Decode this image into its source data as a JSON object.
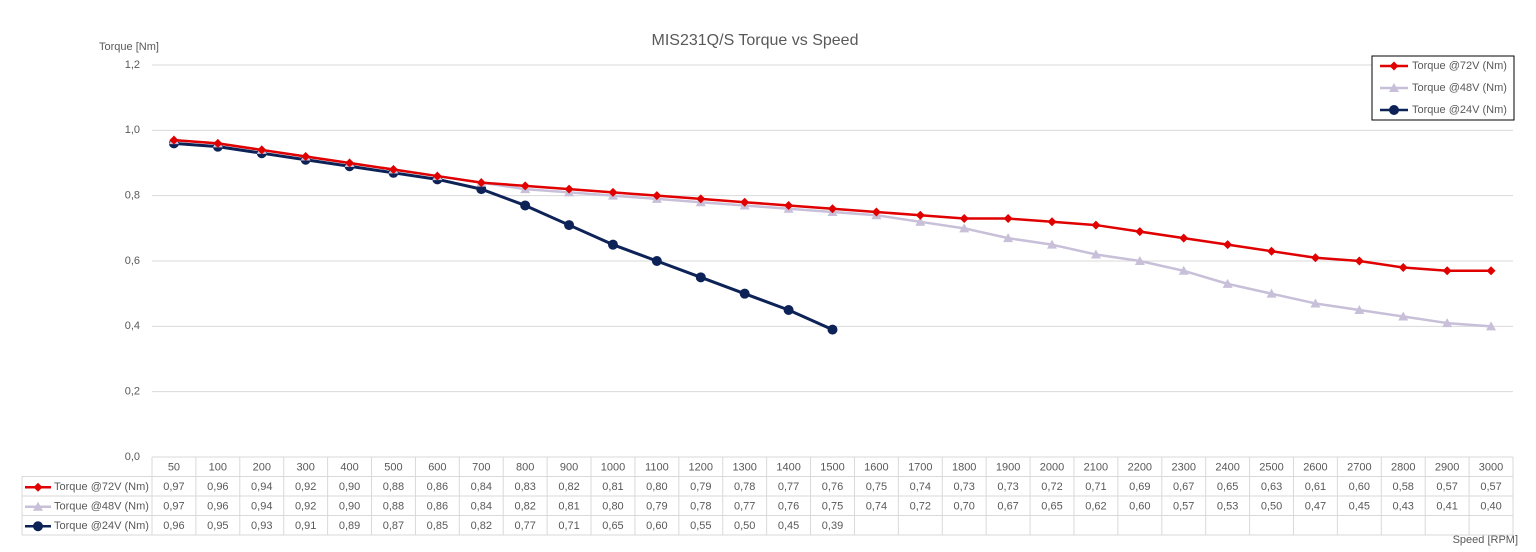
{
  "chart_data": {
    "type": "line",
    "title": "MIS231Q/S Torque vs Speed",
    "y_label": "Torque [Nm]",
    "x_label": "Speed [RPM]",
    "categories": [
      "50",
      "100",
      "200",
      "300",
      "400",
      "500",
      "600",
      "700",
      "800",
      "900",
      "1000",
      "1100",
      "1200",
      "1300",
      "1400",
      "1500",
      "1600",
      "1700",
      "1800",
      "1900",
      "2000",
      "2100",
      "2200",
      "2300",
      "2400",
      "2500",
      "2600",
      "2700",
      "2800",
      "2900",
      "3000"
    ],
    "ylim": [
      0,
      1.2
    ],
    "yticks": [
      {
        "value": 0,
        "label": "0,0"
      },
      {
        "value": 0.2,
        "label": "0,2"
      },
      {
        "value": 0.4,
        "label": "0,4"
      },
      {
        "value": 0.6,
        "label": "0,6"
      },
      {
        "value": 0.8,
        "label": "0,8"
      },
      {
        "value": 1.0,
        "label": "1,0"
      },
      {
        "value": 1.2,
        "label": "1,2"
      }
    ],
    "grid": true,
    "legend": "top-right",
    "series": [
      {
        "name": "Torque @72V (Nm)",
        "color": "#e00000",
        "marker": "diamond",
        "values": [
          0.97,
          0.96,
          0.94,
          0.92,
          0.9,
          0.88,
          0.86,
          0.84,
          0.83,
          0.82,
          0.81,
          0.8,
          0.79,
          0.78,
          0.77,
          0.76,
          0.75,
          0.74,
          0.73,
          0.73,
          0.72,
          0.71,
          0.69,
          0.67,
          0.65,
          0.63,
          0.61,
          0.6,
          0.58,
          0.57,
          0.57
        ],
        "value_labels": [
          "0,97",
          "0,96",
          "0,94",
          "0,92",
          "0,90",
          "0,88",
          "0,86",
          "0,84",
          "0,83",
          "0,82",
          "0,81",
          "0,80",
          "0,79",
          "0,78",
          "0,77",
          "0,76",
          "0,75",
          "0,74",
          "0,73",
          "0,73",
          "0,72",
          "0,71",
          "0,69",
          "0,67",
          "0,65",
          "0,63",
          "0,61",
          "0,60",
          "0,58",
          "0,57",
          "0,57"
        ]
      },
      {
        "name": "Torque @48V (Nm)",
        "color": "#c8bfd9",
        "marker": "triangle",
        "values": [
          0.97,
          0.96,
          0.94,
          0.92,
          0.9,
          0.88,
          0.86,
          0.84,
          0.82,
          0.81,
          0.8,
          0.79,
          0.78,
          0.77,
          0.76,
          0.75,
          0.74,
          0.72,
          0.7,
          0.67,
          0.65,
          0.62,
          0.6,
          0.57,
          0.53,
          0.5,
          0.47,
          0.45,
          0.43,
          0.41,
          0.4
        ],
        "value_labels": [
          "0,97",
          "0,96",
          "0,94",
          "0,92",
          "0,90",
          "0,88",
          "0,86",
          "0,84",
          "0,82",
          "0,81",
          "0,80",
          "0,79",
          "0,78",
          "0,77",
          "0,76",
          "0,75",
          "0,74",
          "0,72",
          "0,70",
          "0,67",
          "0,65",
          "0,62",
          "0,60",
          "0,57",
          "0,53",
          "0,50",
          "0,47",
          "0,45",
          "0,43",
          "0,41",
          "0,40"
        ]
      },
      {
        "name": "Torque @24V (Nm)",
        "color": "#0d2257",
        "marker": "circle",
        "values": [
          0.96,
          0.95,
          0.93,
          0.91,
          0.89,
          0.87,
          0.85,
          0.82,
          0.77,
          0.71,
          0.65,
          0.6,
          0.55,
          0.5,
          0.45,
          0.39,
          null,
          null,
          null,
          null,
          null,
          null,
          null,
          null,
          null,
          null,
          null,
          null,
          null,
          null,
          null
        ],
        "value_labels": [
          "0,96",
          "0,95",
          "0,93",
          "0,91",
          "0,89",
          "0,87",
          "0,85",
          "0,82",
          "0,77",
          "0,71",
          "0,65",
          "0,60",
          "0,55",
          "0,50",
          "0,45",
          "0,39",
          null,
          null,
          null,
          null,
          null,
          null,
          null,
          null,
          null,
          null,
          null,
          null,
          null,
          null,
          null
        ]
      }
    ]
  }
}
